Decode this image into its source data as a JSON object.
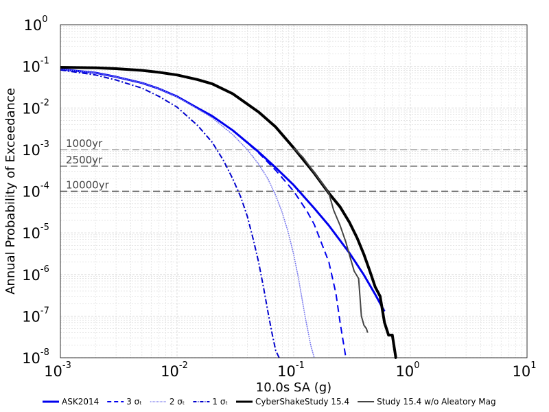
{
  "chart_data": {
    "type": "line",
    "title": "",
    "xlabel": "10.0s SA (g)",
    "ylabel": "Annual Probability of Exceedance",
    "xscale": "log",
    "yscale": "log",
    "xlim": [
      0.001,
      10
    ],
    "ylim": [
      1e-08,
      1
    ],
    "grid": true,
    "legend_position": "bottom",
    "x_ticks": [
      {
        "base": "10",
        "exp": "-3",
        "value": 0.001
      },
      {
        "base": "10",
        "exp": "-2",
        "value": 0.01
      },
      {
        "base": "10",
        "exp": "-1",
        "value": 0.1
      },
      {
        "base": "10",
        "exp": "0",
        "value": 1
      },
      {
        "base": "10",
        "exp": "1",
        "value": 10
      }
    ],
    "y_ticks": [
      {
        "base": "10",
        "exp": "0",
        "value": 1
      },
      {
        "base": "10",
        "exp": "-1",
        "value": 0.1
      },
      {
        "base": "10",
        "exp": "-2",
        "value": 0.01
      },
      {
        "base": "10",
        "exp": "-3",
        "value": 0.001
      },
      {
        "base": "10",
        "exp": "-4",
        "value": 0.0001
      },
      {
        "base": "10",
        "exp": "-5",
        "value": 1e-05
      },
      {
        "base": "10",
        "exp": "-6",
        "value": 1e-06
      },
      {
        "base": "10",
        "exp": "-7",
        "value": 1e-07
      },
      {
        "base": "10",
        "exp": "-8",
        "value": 1e-08
      }
    ],
    "reference_lines": [
      {
        "label": "1000yr",
        "y": 0.001,
        "color": "#aaaaaa"
      },
      {
        "label": "2500yr",
        "y": 0.0004,
        "color": "#777777"
      },
      {
        "label": "10000yr",
        "y": 0.0001,
        "color": "#444444"
      }
    ],
    "series": [
      {
        "name": "ASK2014",
        "color": "#0000ee",
        "width": 3,
        "dash": "",
        "x": [
          0.001,
          0.002,
          0.003,
          0.005,
          0.007,
          0.01,
          0.015,
          0.02,
          0.03,
          0.05,
          0.07,
          0.1,
          0.15,
          0.2,
          0.3,
          0.4,
          0.5,
          0.6
        ],
        "y": [
          0.085,
          0.07,
          0.056,
          0.04,
          0.029,
          0.0189,
          0.01,
          0.0064,
          0.0029,
          0.00088,
          0.00037,
          0.00014,
          3.9e-05,
          1.5e-05,
          3.3e-06,
          9.7e-07,
          3.3e-07,
          1.3e-07
        ]
      },
      {
        "name": "3 σₜ",
        "color": "#0000ee",
        "width": 2,
        "dash": "10,6",
        "x": [
          0.001,
          0.002,
          0.003,
          0.005,
          0.007,
          0.01,
          0.015,
          0.02,
          0.03,
          0.05,
          0.07,
          0.1,
          0.13,
          0.15,
          0.2,
          0.23,
          0.25,
          0.28
        ],
        "y": [
          0.085,
          0.07,
          0.056,
          0.04,
          0.029,
          0.0189,
          0.01,
          0.0064,
          0.0029,
          0.00084,
          0.00032,
          0.0001,
          3.3e-05,
          1.6e-05,
          2e-06,
          3.5e-07,
          7e-08,
          1e-08
        ]
      },
      {
        "name": "2 σₜ",
        "color": "#7777ee",
        "width": 1.5,
        "dash": "2,1",
        "x": [
          0.001,
          0.002,
          0.003,
          0.005,
          0.007,
          0.01,
          0.015,
          0.02,
          0.03,
          0.04,
          0.05,
          0.06,
          0.07,
          0.08,
          0.09,
          0.1,
          0.11,
          0.125,
          0.14,
          0.15
        ],
        "y": [
          0.085,
          0.07,
          0.056,
          0.04,
          0.029,
          0.0185,
          0.0095,
          0.0058,
          0.0023,
          0.001,
          0.00045,
          0.0002,
          8e-05,
          3e-05,
          1e-05,
          3e-06,
          8e-07,
          1e-07,
          2e-08,
          1e-08
        ]
      },
      {
        "name": "1 σₜ",
        "color": "#0000cc",
        "width": 2,
        "dash": "8,3,2,3",
        "x": [
          0.001,
          0.002,
          0.003,
          0.005,
          0.007,
          0.01,
          0.015,
          0.02,
          0.025,
          0.03,
          0.035,
          0.04,
          0.045,
          0.05,
          0.055,
          0.06,
          0.065,
          0.07,
          0.075
        ],
        "y": [
          0.082,
          0.062,
          0.047,
          0.03,
          0.019,
          0.0105,
          0.0038,
          0.0015,
          0.00055,
          0.0002,
          7.5e-05,
          2.5e-05,
          7e-06,
          2e-06,
          5e-07,
          1.3e-07,
          4e-08,
          1.5e-08,
          1e-08
        ]
      },
      {
        "name": "CyberShakeStudy 15.4",
        "color": "#000000",
        "width": 4,
        "dash": "",
        "x": [
          0.001,
          0.002,
          0.003,
          0.005,
          0.007,
          0.01,
          0.015,
          0.02,
          0.03,
          0.05,
          0.07,
          0.1,
          0.15,
          0.2,
          0.25,
          0.3,
          0.35,
          0.4,
          0.45,
          0.5,
          0.55,
          0.6,
          0.65,
          0.7,
          0.75,
          0.76
        ],
        "y": [
          0.095,
          0.092,
          0.088,
          0.08,
          0.072,
          0.062,
          0.048,
          0.038,
          0.022,
          0.008,
          0.0035,
          0.0011,
          0.00027,
          9e-05,
          4.2e-05,
          1.8e-05,
          7.5e-06,
          3e-06,
          1.2e-06,
          5e-07,
          3e-07,
          7e-08,
          3.5e-08,
          3.5e-08,
          1e-08,
          1e-08
        ]
      },
      {
        "name": "Study 15.4 w/o Aleatory Mag",
        "color": "#444444",
        "width": 2,
        "dash": "",
        "x": [
          0.1,
          0.12,
          0.15,
          0.18,
          0.2,
          0.22,
          0.25,
          0.28,
          0.3,
          0.33,
          0.36,
          0.38,
          0.4,
          0.42,
          0.43
        ],
        "y": [
          0.0011,
          0.00065,
          0.00028,
          0.00014,
          9e-05,
          3.5e-05,
          1.5e-05,
          6e-06,
          3e-06,
          1.2e-06,
          8e-07,
          1e-07,
          6e-08,
          5e-08,
          4e-08
        ]
      }
    ]
  }
}
